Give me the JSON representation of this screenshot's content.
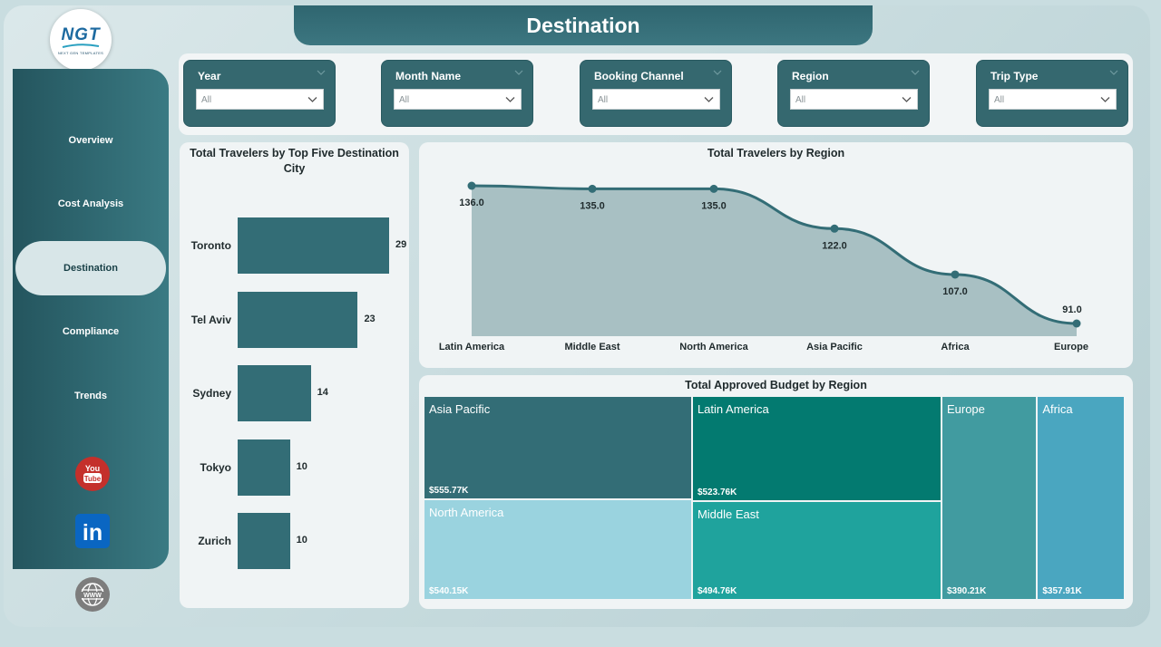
{
  "header": {
    "title": "Destination"
  },
  "logo": {
    "text": "NGT",
    "subtitle": "NEXT GEN TEMPLATES"
  },
  "sidebar": {
    "items": [
      {
        "label": "Overview",
        "active": false
      },
      {
        "label": "Cost Analysis",
        "active": false
      },
      {
        "label": "Destination",
        "active": true
      },
      {
        "label": "Compliance",
        "active": false
      },
      {
        "label": "Trends",
        "active": false
      }
    ],
    "social": [
      {
        "icon": "youtube-icon",
        "label": "You Tube",
        "color": "#c4302b"
      },
      {
        "icon": "linkedin-icon",
        "label": "in",
        "color": "#0a66c2"
      },
      {
        "icon": "globe-icon",
        "label": "www",
        "color": "#7a7a7a"
      }
    ]
  },
  "filters": [
    {
      "label": "Year",
      "value": "All"
    },
    {
      "label": "Month Name",
      "value": "All"
    },
    {
      "label": "Booking Channel",
      "value": "All"
    },
    {
      "label": "Region",
      "value": "All"
    },
    {
      "label": "Trip Type",
      "value": "All"
    }
  ],
  "chart_data": [
    {
      "type": "bar",
      "orientation": "horizontal",
      "title": "Total Travelers by Top Five Destination City",
      "categories": [
        "Toronto",
        "Tel Aviv",
        "Sydney",
        "Tokyo",
        "Zurich"
      ],
      "values": [
        29,
        23,
        14,
        10,
        10
      ],
      "color": "#336d76"
    },
    {
      "type": "area",
      "title": "Total Travelers by Region",
      "categories": [
        "Latin America",
        "Middle East",
        "North America",
        "Asia Pacific",
        "Africa",
        "Europe"
      ],
      "values": [
        136.0,
        135.0,
        135.0,
        122.0,
        107.0,
        91.0
      ],
      "value_labels": [
        "136.0",
        "135.0",
        "135.0",
        "122.0",
        "107.0",
        "91.0"
      ],
      "line_color": "#336d76",
      "fill_color": "#a8c0c3"
    },
    {
      "type": "treemap",
      "title": "Total Approved Budget by Region",
      "items": [
        {
          "name": "Asia Pacific",
          "value_label": "$555.77K",
          "value": 555.77,
          "color": "#336d76"
        },
        {
          "name": "Latin America",
          "value_label": "$523.76K",
          "value": 523.76,
          "color": "#037a70"
        },
        {
          "name": "North America",
          "value_label": "$540.15K",
          "value": 540.15,
          "color": "#9ad3df"
        },
        {
          "name": "Middle East",
          "value_label": "$494.76K",
          "value": 494.76,
          "color": "#1fa39d"
        },
        {
          "name": "Europe",
          "value_label": "$390.21K",
          "value": 390.21,
          "color": "#419ba0"
        },
        {
          "name": "Africa",
          "value_label": "$357.91K",
          "value": 357.91,
          "color": "#4aa6c0"
        }
      ]
    }
  ]
}
